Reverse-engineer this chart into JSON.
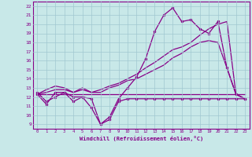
{
  "xlabel": "Windchill (Refroidissement éolien,°C)",
  "bg_color": "#c8e8e8",
  "grid_color": "#a0c8d0",
  "line_color": "#880088",
  "xlim": [
    -0.5,
    23.5
  ],
  "ylim": [
    8.5,
    22.5
  ],
  "xticks": [
    0,
    1,
    2,
    3,
    4,
    5,
    6,
    7,
    8,
    9,
    10,
    11,
    12,
    13,
    14,
    15,
    16,
    17,
    18,
    19,
    20,
    21,
    22,
    23
  ],
  "yticks": [
    9,
    10,
    11,
    12,
    13,
    14,
    15,
    16,
    17,
    18,
    19,
    20,
    21,
    22
  ],
  "line_noisy": [
    12.5,
    11.5,
    12.0,
    12.5,
    11.5,
    12.0,
    10.8,
    9.0,
    9.5,
    11.5,
    11.8,
    11.8,
    11.8,
    11.8,
    11.8,
    11.8,
    11.8,
    11.8,
    11.8,
    11.8,
    11.8,
    11.8,
    11.8,
    11.8
  ],
  "line_flat": [
    12.3,
    12.3,
    12.3,
    12.3,
    12.3,
    12.3,
    12.3,
    12.3,
    12.3,
    12.3,
    12.3,
    12.3,
    12.3,
    12.3,
    12.3,
    12.3,
    12.3,
    12.3,
    12.3,
    12.3,
    12.3,
    12.3,
    12.3,
    12.3
  ],
  "line_peak": [
    12.3,
    11.2,
    12.5,
    12.5,
    12.0,
    12.0,
    11.8,
    9.0,
    9.8,
    11.8,
    13.0,
    14.2,
    16.2,
    19.2,
    21.0,
    21.8,
    20.3,
    20.5,
    19.5,
    19.0,
    20.3,
    15.2,
    12.3,
    11.8
  ],
  "line_linear1": [
    12.3,
    12.5,
    12.8,
    12.8,
    12.5,
    12.8,
    12.5,
    12.5,
    13.0,
    13.3,
    13.8,
    14.0,
    14.5,
    15.0,
    15.5,
    16.3,
    16.8,
    17.5,
    18.0,
    18.2,
    18.0,
    15.2,
    12.3,
    11.8
  ],
  "line_linear2": [
    12.3,
    12.8,
    13.2,
    13.0,
    12.5,
    13.0,
    12.5,
    12.8,
    13.2,
    13.5,
    14.0,
    14.5,
    15.2,
    15.8,
    16.5,
    17.2,
    17.5,
    18.0,
    18.8,
    19.5,
    20.0,
    20.3,
    12.3,
    11.8
  ]
}
